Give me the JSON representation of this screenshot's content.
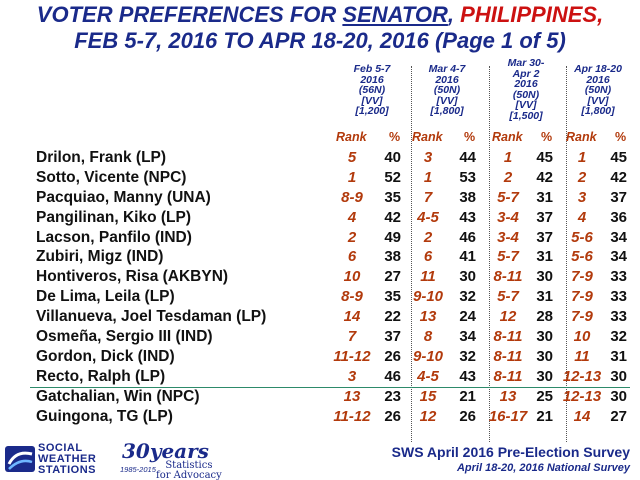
{
  "title": {
    "prefix": "VOTER PREFERENCES FOR ",
    "office": "SENATOR",
    "separator": ", ",
    "country": "PHILIPPINES",
    "suffix": ",",
    "line2": "FEB 5-7, 2016 TO APR 18-20, 2016 (Page 1 of 5)"
  },
  "columns": [
    {
      "lines": [
        "Feb 5-7",
        "2016",
        "(56N)",
        "[VV]",
        "[1,200]"
      ]
    },
    {
      "lines": [
        "Mar 4-7",
        "2016",
        "(50N)",
        "[VV]",
        "[1,800]"
      ]
    },
    {
      "lines": [
        "Mar 30-",
        "Apr 2",
        "2016",
        "(50N)",
        "[VV]",
        "[1,500]"
      ]
    },
    {
      "lines": [
        "Apr 18-20",
        "2016",
        "(50N)",
        "[VV]",
        "[1,800]"
      ]
    }
  ],
  "subheader": {
    "rank": "Rank",
    "pct": "%"
  },
  "candidates": [
    {
      "name": "Drilon, Frank   (LP)",
      "rank": [
        "5",
        "3",
        "1",
        "1"
      ],
      "pct": [
        "40",
        "44",
        "45",
        "45"
      ]
    },
    {
      "name": "Sotto, Vicente  (NPC)",
      "rank": [
        "1",
        "1",
        "2",
        "2"
      ],
      "pct": [
        "52",
        "53",
        "42",
        "42"
      ]
    },
    {
      "name": "Pacquiao, Manny  (UNA)",
      "rank": [
        "8-9",
        "7",
        "5-7",
        "3"
      ],
      "pct": [
        "35",
        "38",
        "31",
        "37"
      ]
    },
    {
      "name": "Pangilinan, Kiko  (LP)",
      "rank": [
        "4",
        "4-5",
        "3-4",
        "4"
      ],
      "pct": [
        "42",
        "43",
        "37",
        "36"
      ]
    },
    {
      "name": "Lacson, Panfilo   (IND)",
      "rank": [
        "2",
        "2",
        "3-4",
        "5-6"
      ],
      "pct": [
        "49",
        "46",
        "37",
        "34"
      ]
    },
    {
      "name": "Zubiri, Migz   (IND)",
      "rank": [
        "6",
        "6",
        "5-7",
        "5-6"
      ],
      "pct": [
        "38",
        "41",
        "31",
        "34"
      ]
    },
    {
      "name": "Hontiveros, Risa  (AKBYN)",
      "rank": [
        "10",
        "11",
        "8-11",
        "7-9"
      ],
      "pct": [
        "27",
        "30",
        "30",
        "33"
      ]
    },
    {
      "name": "De Lima, Leila   (LP)",
      "rank": [
        "8-9",
        "9-10",
        "5-7",
        "7-9"
      ],
      "pct": [
        "35",
        "32",
        "31",
        "33"
      ]
    },
    {
      "name": "Villanueva, Joel Tesdaman  (LP)",
      "rank": [
        "14",
        "13",
        "12",
        "7-9"
      ],
      "pct": [
        "22",
        "24",
        "28",
        "33"
      ]
    },
    {
      "name": "Osmeña, Sergio III  (IND)",
      "rank": [
        "7",
        "8",
        "8-11",
        "10"
      ],
      "pct": [
        "37",
        "34",
        "30",
        "32"
      ]
    },
    {
      "name": "Gordon, Dick  (IND)",
      "rank": [
        "11-12",
        "9-10",
        "8-11",
        "11"
      ],
      "pct": [
        "26",
        "32",
        "30",
        "31"
      ]
    },
    {
      "name": "Recto, Ralph  (LP)",
      "rank": [
        "3",
        "4-5",
        "8-11",
        "12-13"
      ],
      "pct": [
        "46",
        "43",
        "30",
        "30"
      ]
    },
    {
      "name": "Gatchalian, Win  (NPC)",
      "rank": [
        "13",
        "15",
        "13",
        "12-13"
      ],
      "pct": [
        "23",
        "21",
        "25",
        "30"
      ]
    },
    {
      "name": "Guingona, TG  (LP)",
      "rank": [
        "11-12",
        "12",
        "16-17",
        "14"
      ],
      "pct": [
        "26",
        "26",
        "21",
        "27"
      ]
    }
  ],
  "logo": {
    "org_line1": "SOCIAL",
    "org_line2": "WEATHER",
    "org_line3": "STATIONS",
    "years": "30years",
    "range": "1985-2015",
    "tagline1": "Statistics",
    "tagline2": "for Advocacy"
  },
  "footer": {
    "survey": "SWS April 2016 Pre-Election Survey",
    "dates": "April 18-20, 2016 National Survey"
  },
  "colors": {
    "title_blue": "#1a2a8a",
    "title_red": "#cc1111",
    "rank_orange": "#b23a0c",
    "separator_green": "#2d8a6a"
  }
}
